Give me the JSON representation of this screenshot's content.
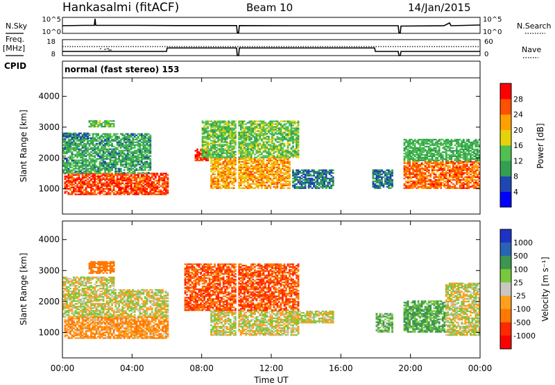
{
  "header": {
    "station": "Hankasalmi (fitACF)",
    "beam": "Beam 10",
    "date": "14/Jan/2015"
  },
  "left_labels": {
    "nsky": "N.Sky",
    "freq": "Freq.",
    "freq_unit": "[MHz]",
    "cpid": "CPID"
  },
  "right_labels": {
    "nsearch": "N.Search",
    "nave": "Nave"
  },
  "noise_panel": {
    "left_ticks": [
      "10^5",
      "10^0"
    ],
    "right_ticks": [
      "10^5",
      "10^0"
    ]
  },
  "freq_panel": {
    "left_ticks": [
      "18",
      "8"
    ],
    "right_ticks": [
      "60",
      "0"
    ]
  },
  "cpid_text": "normal (fast stereo) 153",
  "x_axis": {
    "label": "Time UT",
    "ticks": [
      "00:00",
      "04:00",
      "08:00",
      "12:00",
      "16:00",
      "20:00",
      "00:00"
    ]
  },
  "y_axis": {
    "label": "Slant Range [km]",
    "ticks": [
      "1000",
      "2000",
      "3000",
      "4000"
    ]
  },
  "colorbars": {
    "power": {
      "label": "Power [dB]",
      "ticks": [
        "4",
        "8",
        "12",
        "16",
        "20",
        "24",
        "28"
      ],
      "colors": [
        "#0000ff",
        "#1e46b4",
        "#32a050",
        "#50c050",
        "#e6d20a",
        "#ffa000",
        "#ff5000",
        "#ff0000"
      ]
    },
    "velocity": {
      "label": "Velocity [m s⁻¹]",
      "ticks": [
        "1000",
        "500",
        "100",
        "25",
        "-25",
        "-100",
        "-500",
        "-1000"
      ],
      "colors": [
        "#1e32c8",
        "#2864b4",
        "#3c9650",
        "#78c83c",
        "#c8c8c0",
        "#ffa01e",
        "#ff7800",
        "#ff2800",
        "#ff0000"
      ]
    }
  },
  "chart_data": [
    {
      "type": "heatmap",
      "name": "Power",
      "xlabel": "Time UT",
      "ylabel": "Slant Range [km]",
      "xlim": [
        "00:00",
        "24:00"
      ],
      "ylim": [
        180,
        4600
      ],
      "colorbar": "Power [dB]",
      "regions": [
        {
          "t": [
            0.1,
            6.0
          ],
          "r": [
            800,
            1500
          ],
          "level": 27
        },
        {
          "t": [
            0.0,
            5.0
          ],
          "r": [
            1500,
            2800
          ],
          "level": 11
        },
        {
          "t": [
            0.0,
            1.5
          ],
          "r": [
            2600,
            2800
          ],
          "level": 8
        },
        {
          "t": [
            1.5,
            3.0
          ],
          "r": [
            3000,
            3200
          ],
          "level": 13
        },
        {
          "t": [
            7.6,
            8.3
          ],
          "r": [
            1900,
            2300
          ],
          "level": 27
        },
        {
          "t": [
            8.5,
            13.0
          ],
          "r": [
            1000,
            2000
          ],
          "level": 22
        },
        {
          "t": [
            8.0,
            13.5
          ],
          "r": [
            2000,
            3200
          ],
          "level": 14
        },
        {
          "t": [
            13.2,
            15.5
          ],
          "r": [
            1000,
            1600
          ],
          "level": 8
        },
        {
          "t": [
            17.8,
            19.0
          ],
          "r": [
            1000,
            1600
          ],
          "level": 8
        },
        {
          "t": [
            19.6,
            24.0
          ],
          "r": [
            1000,
            1900
          ],
          "level": 25
        },
        {
          "t": [
            19.6,
            24.0
          ],
          "r": [
            1900,
            2600
          ],
          "level": 12
        }
      ]
    },
    {
      "type": "heatmap",
      "name": "Velocity",
      "xlabel": "Time UT",
      "ylabel": "Slant Range [km]",
      "xlim": [
        "00:00",
        "24:00"
      ],
      "ylim": [
        180,
        4600
      ],
      "colorbar": "Velocity [m s⁻¹]",
      "regions": [
        {
          "t": [
            0.1,
            6.0
          ],
          "r": [
            800,
            1500
          ],
          "level": -60
        },
        {
          "t": [
            0.0,
            6.0
          ],
          "r": [
            1500,
            2400
          ],
          "level": 0
        },
        {
          "t": [
            0.0,
            3.0
          ],
          "r": [
            2400,
            2800
          ],
          "level": 0
        },
        {
          "t": [
            1.5,
            3.0
          ],
          "r": [
            2900,
            3300
          ],
          "level": -150
        },
        {
          "t": [
            8.5,
            13.5
          ],
          "r": [
            900,
            1700
          ],
          "level": 0
        },
        {
          "t": [
            7.0,
            13.5
          ],
          "r": [
            1700,
            3200
          ],
          "level": -300
        },
        {
          "t": [
            13.2,
            15.5
          ],
          "r": [
            1300,
            1700
          ],
          "level": 0
        },
        {
          "t": [
            18.0,
            19.0
          ],
          "r": [
            1000,
            1600
          ],
          "level": 50
        },
        {
          "t": [
            19.6,
            22.0
          ],
          "r": [
            1000,
            2000
          ],
          "level": 80
        },
        {
          "t": [
            22.0,
            24.0
          ],
          "r": [
            900,
            2600
          ],
          "level": 0
        }
      ]
    }
  ]
}
